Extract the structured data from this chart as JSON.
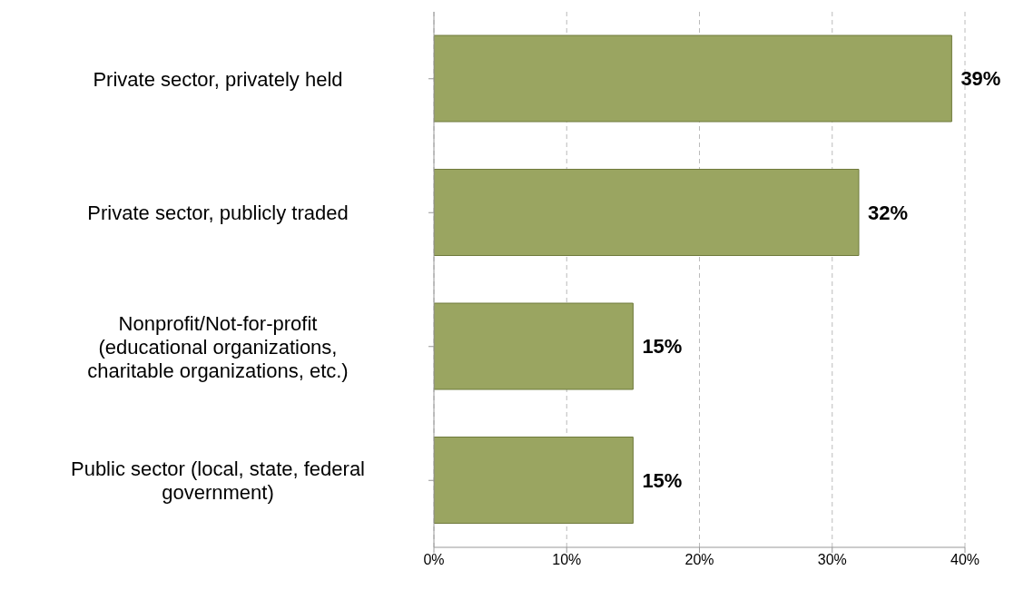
{
  "chart_data": {
    "type": "bar",
    "orientation": "horizontal",
    "categories": [
      "Private sector, privately held",
      "Private sector, publicly traded",
      "Nonprofit/Not-for-profit (educational organizations, charitable organizations, etc.)",
      "Public sector (local, state, federal government)"
    ],
    "values": [
      39,
      32,
      15,
      15
    ],
    "value_labels": [
      "39%",
      "32%",
      "15%",
      "15%"
    ],
    "color": "#9aa561",
    "xlim": [
      0,
      40
    ],
    "xticks": [
      {
        "value": 0,
        "label": "0%"
      },
      {
        "value": 10,
        "label": "10%"
      },
      {
        "value": 20,
        "label": "20%"
      },
      {
        "value": 30,
        "label": "30%"
      },
      {
        "value": 40,
        "label": "40%"
      }
    ],
    "grid": "x"
  }
}
